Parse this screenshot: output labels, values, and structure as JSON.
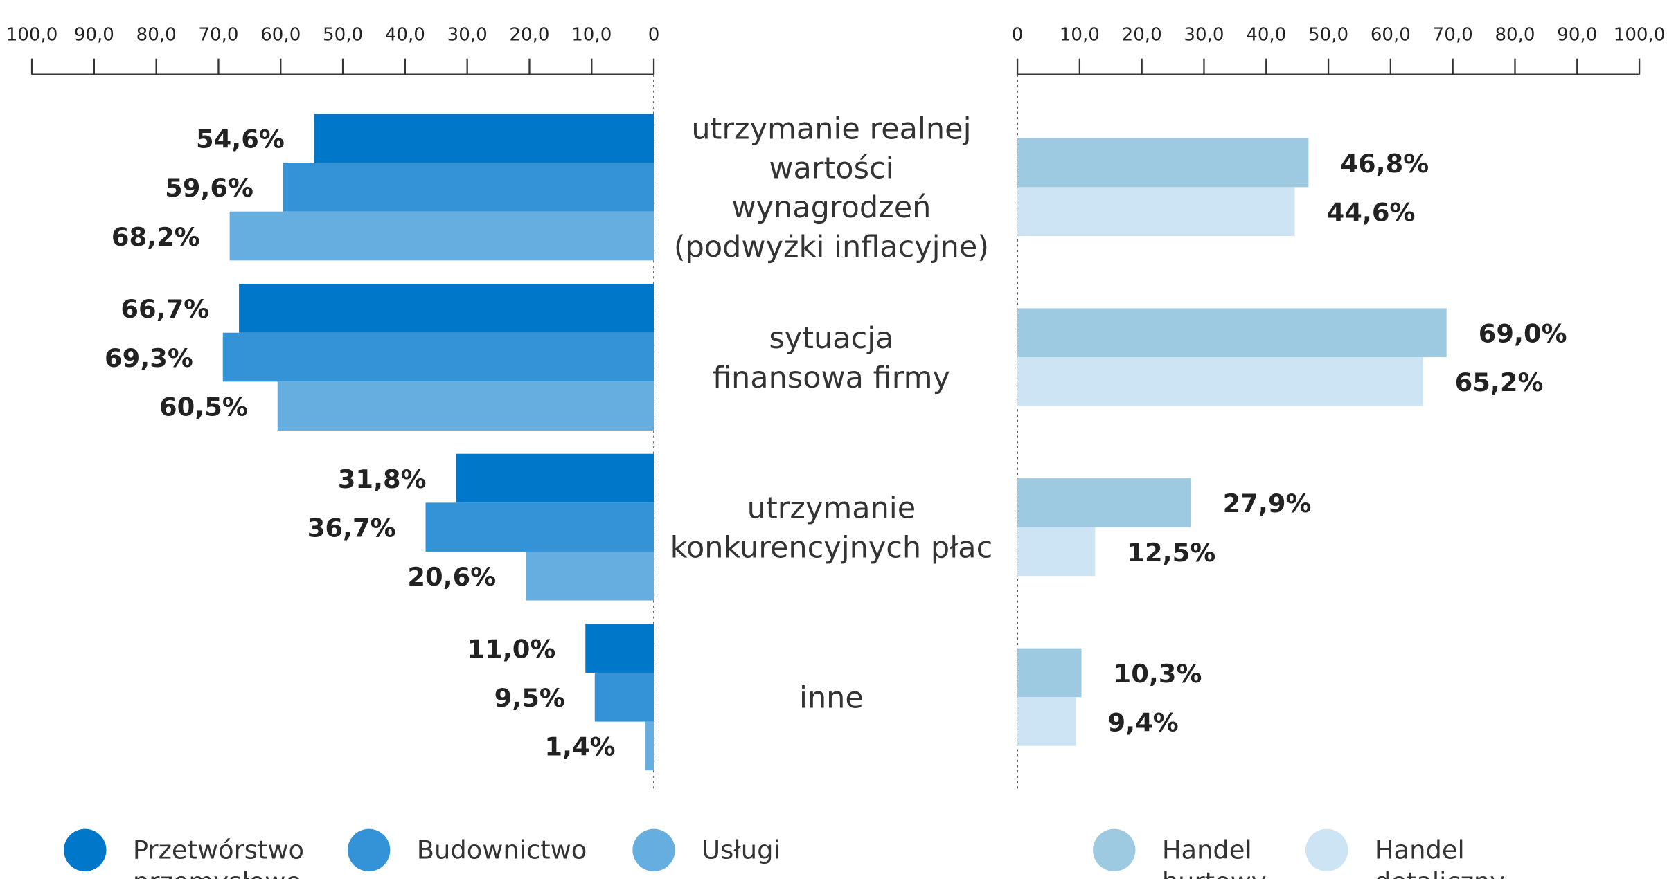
{
  "chart_data": [
    {
      "type": "bar",
      "orientation": "horizontal",
      "categories": [
        "utrzymanie realnej\nwartości\nwynagrodzeń\n(podwyżki inflacyjne)",
        "sytuacja\nfinansowa firmy",
        "utrzymanie\nkonkurencyjnych płac",
        "inne"
      ],
      "xlim": [
        100,
        0
      ],
      "xticks": [
        {
          "value": 100,
          "label": "100,0"
        },
        {
          "value": 90,
          "label": "90,0"
        },
        {
          "value": 80,
          "label": "80,0"
        },
        {
          "value": 70,
          "label": "70,0"
        },
        {
          "value": 60,
          "label": "60,0"
        },
        {
          "value": 50,
          "label": "50,0"
        },
        {
          "value": 40,
          "label": "40,0"
        },
        {
          "value": 30,
          "label": "30,0"
        },
        {
          "value": 20,
          "label": "20,0"
        },
        {
          "value": 10,
          "label": "10,0"
        },
        0
      ],
      "series": [
        {
          "name": "Przetwórstwo przemysłowe",
          "color": "#0077c8",
          "values": [
            54.6,
            66.7,
            31.8,
            11.0
          ],
          "value_labels": [
            "54,6%",
            "66,7%",
            "31,8%",
            "11,0%"
          ]
        },
        {
          "name": "Budownictwo",
          "color": "#3393d6",
          "values": [
            59.6,
            69.3,
            36.7,
            9.5
          ],
          "value_labels": [
            "59,6%",
            "69,3%",
            "36,7%",
            "9,5%"
          ]
        },
        {
          "name": "Usługi",
          "color": "#66aee0",
          "values": [
            68.2,
            60.5,
            20.6,
            1.4
          ],
          "value_labels": [
            "68,2%",
            "60,5%",
            "20,6%",
            "1,4%"
          ]
        }
      ]
    },
    {
      "type": "bar",
      "orientation": "horizontal",
      "xlim": [
        0,
        100
      ],
      "xticks": [
        0,
        {
          "value": 10,
          "label": "10,0"
        },
        {
          "value": 20,
          "label": "20,0"
        },
        {
          "value": 30,
          "label": "30,0"
        },
        {
          "value": 40,
          "label": "40,0"
        },
        {
          "value": 50,
          "label": "50,0"
        },
        {
          "value": 60,
          "label": "60,0"
        },
        {
          "value": 70,
          "label": "70,0"
        },
        {
          "value": 80,
          "label": "80,0"
        },
        {
          "value": 90,
          "label": "90,0"
        },
        {
          "value": 100,
          "label": "100,0"
        }
      ],
      "series": [
        {
          "name": "Handel hurtowy",
          "color": "#9ecae1",
          "values": [
            46.8,
            69.0,
            27.9,
            10.3
          ],
          "value_labels": [
            "46,8%",
            "69,0%",
            "27,9%",
            "10,3%"
          ]
        },
        {
          "name": "Handel detaliczny",
          "color": "#cde4f4",
          "values": [
            44.6,
            65.2,
            12.5,
            9.4
          ],
          "value_labels": [
            "44,6%",
            "65,2%",
            "12,5%",
            "9,4%"
          ]
        }
      ]
    }
  ]
}
